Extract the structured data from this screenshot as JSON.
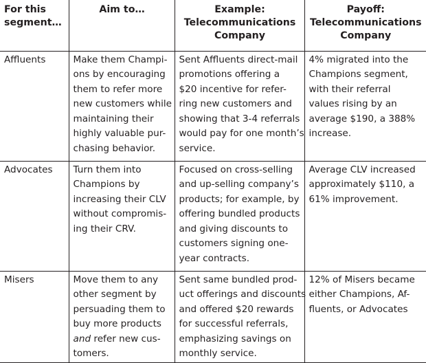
{
  "headers": {
    "segment": [
      "For this",
      "segment…"
    ],
    "aim": [
      "Aim to…"
    ],
    "example": [
      "Example:",
      "Telecommunications",
      "Company"
    ],
    "payoff": [
      "Payoff:",
      "Telecommunications",
      "Company"
    ]
  },
  "rows": [
    {
      "segment": "Affluents",
      "aim": [
        "Make them Champi-",
        "ons by encouraging",
        "them to refer more",
        "new customers while",
        "maintaining their",
        "highly valuable pur-",
        "chasing behavior."
      ],
      "example": [
        "Sent Affluents direct-mail",
        "promotions offering a",
        "$20 incentive for refer-",
        "ring new customers and",
        "showing that 3-4 referrals",
        "would pay for one month’s",
        "service."
      ],
      "payoff": [
        "4% migrated into the",
        "Champions segment,",
        "with their referral",
        "values rising by an",
        "average $190, a 388%",
        "increase."
      ]
    },
    {
      "segment": "Advocates",
      "aim": [
        "Turn them into",
        "Champions by",
        "increasing their CLV",
        "without compromis-",
        "ing their CRV."
      ],
      "example": [
        "Focused on cross-selling",
        "and up-selling company’s",
        "products; for example, by",
        "offering bundled products",
        "and giving discounts to",
        "customers signing one-",
        "year contracts."
      ],
      "payoff": [
        "Average CLV increased",
        "approximately $110, a",
        "61% improvement."
      ]
    },
    {
      "segment": "Misers",
      "aim": [
        "Move them to any",
        "other segment by",
        "persuading them to",
        "buy more products",
        "and",
        " refer new cus-",
        "tomers."
      ],
      "example": [
        "Sent same bundled prod-",
        "uct offerings and discounts",
        "and offered $20 rewards",
        "for successful referrals,",
        "emphasizing savings on",
        "monthly service."
      ],
      "payoff": [
        "12% of Misers became",
        "either Champions, Af-",
        "fluents, or Advocates"
      ]
    }
  ]
}
